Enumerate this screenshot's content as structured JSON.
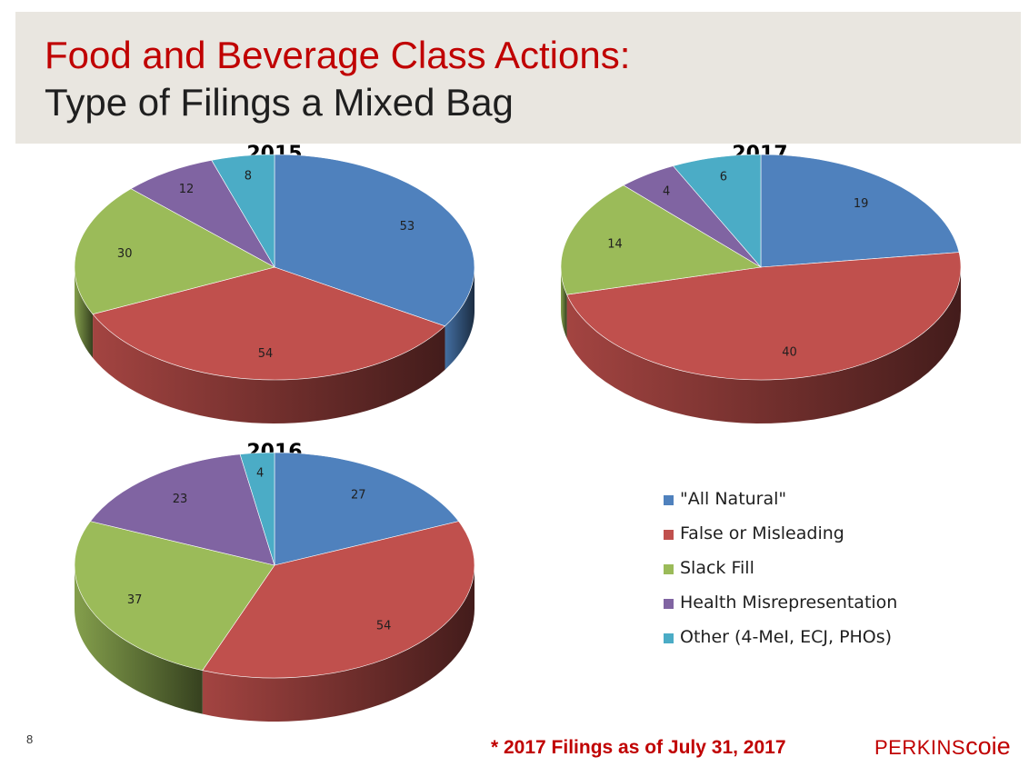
{
  "slide": {
    "title_line1": "Food and Beverage Class Actions:",
    "title_line2": "Type of Filings a Mixed Bag",
    "page_number": "8",
    "footnote": "* 2017 Filings as of July 31, 2017",
    "logo_part1": "PERKINS",
    "logo_part2": "coie"
  },
  "legend": [
    {
      "label": "\"All Natural\"",
      "color": "#4f81bd"
    },
    {
      "label": "False or Misleading",
      "color": "#c0504d"
    },
    {
      "label": "Slack Fill",
      "color": "#9bbb59"
    },
    {
      "label": "Health Misrepresentation",
      "color": "#8064a2"
    },
    {
      "label": "Other (4-MeI, ECJ, PHOs)",
      "color": "#4bacc6"
    }
  ],
  "chart_data": [
    {
      "type": "pie",
      "title": "2015",
      "categories": [
        "\"All Natural\"",
        "False or Misleading",
        "Slack Fill",
        "Health Misrepresentation",
        "Other (4-MeI, ECJ, PHOs)"
      ],
      "values": [
        53,
        54,
        30,
        12,
        8
      ],
      "colors": [
        "#4f81bd",
        "#c0504d",
        "#9bbb59",
        "#8064a2",
        "#4bacc6"
      ]
    },
    {
      "type": "pie",
      "title": "2017",
      "categories": [
        "\"All Natural\"",
        "False or Misleading",
        "Slack Fill",
        "Health Misrepresentation",
        "Other (4-MeI, ECJ, PHOs)"
      ],
      "values": [
        19,
        40,
        14,
        4,
        6
      ],
      "colors": [
        "#4f81bd",
        "#c0504d",
        "#9bbb59",
        "#8064a2",
        "#4bacc6"
      ]
    },
    {
      "type": "pie",
      "title": "2016",
      "categories": [
        "\"All Natural\"",
        "False or Misleading",
        "Slack Fill",
        "Health Misrepresentation",
        "Other (4-MeI, ECJ, PHOs)"
      ],
      "values": [
        27,
        54,
        37,
        23,
        4
      ],
      "colors": [
        "#4f81bd",
        "#c0504d",
        "#9bbb59",
        "#8064a2",
        "#4bacc6"
      ]
    }
  ]
}
